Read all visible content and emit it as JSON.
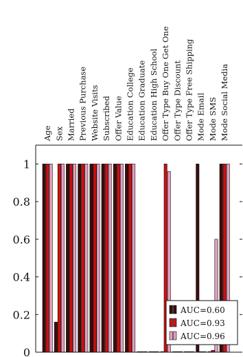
{
  "chart_data": {
    "type": "bar",
    "categories": [
      "Age",
      "Sex",
      "Married",
      "Previous Purchase",
      "Website Visits",
      "Subscribed",
      "Offer Value",
      "Education College",
      "Education Graduate",
      "Education High School",
      "Offer Type Buy One Get One",
      "Offer Type Discount",
      "Offer Type Free Shipping",
      "Mode Email",
      "Mode SMS",
      "Mode Social Media"
    ],
    "series": [
      {
        "name": "AUC=0.60",
        "color": "#3a0d0d",
        "values": [
          1,
          0.16,
          1,
          1,
          1,
          1,
          1,
          1,
          0,
          0,
          0,
          0,
          0,
          1,
          0,
          1
        ]
      },
      {
        "name": "AUC=0.93",
        "color": "#cc1010",
        "values": [
          1,
          1,
          1,
          1,
          1,
          1,
          1,
          1,
          0,
          0,
          1,
          0,
          0,
          0,
          0.01,
          1
        ]
      },
      {
        "name": "AUC=0.96",
        "color": "#e0a0c0",
        "values": [
          1,
          1,
          1,
          1,
          1,
          1,
          1,
          1,
          0,
          0,
          0.96,
          0,
          0,
          0,
          0.6,
          1
        ]
      }
    ],
    "yticks": [
      "0",
      "0.2",
      "0.4",
      "0.6",
      "0.8",
      "1"
    ],
    "ylim": [
      0,
      1.1
    ],
    "grid": false,
    "legend_position": "bottom-right"
  }
}
